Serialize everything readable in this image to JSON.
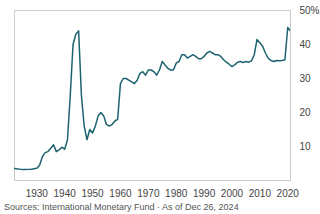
{
  "chart_data": {
    "type": "line",
    "caption": "Sources: International Monetary Fund · As of Dec 26, 2024",
    "color": "#1d6370",
    "x": [
      1922,
      1925,
      1928,
      1930,
      1931,
      1932,
      1933,
      1934,
      1935,
      1936,
      1937,
      1938,
      1939,
      1940,
      1941,
      1942,
      1943,
      1944,
      1945,
      1946,
      1947,
      1948,
      1949,
      1950,
      1951,
      1952,
      1953,
      1954,
      1955,
      1956,
      1957,
      1958,
      1959,
      1960,
      1961,
      1962,
      1963,
      1964,
      1965,
      1966,
      1967,
      1968,
      1969,
      1970,
      1971,
      1972,
      1973,
      1974,
      1975,
      1976,
      1977,
      1978,
      1979,
      1980,
      1981,
      1982,
      1983,
      1984,
      1985,
      1986,
      1987,
      1988,
      1989,
      1990,
      1991,
      1992,
      1993,
      1994,
      1995,
      1996,
      1997,
      1998,
      1999,
      2000,
      2001,
      2002,
      2003,
      2004,
      2005,
      2006,
      2007,
      2008,
      2009,
      2010,
      2011,
      2012,
      2013,
      2014,
      2015,
      2016,
      2017,
      2018,
      2019,
      2020,
      2021
    ],
    "values": [
      3.5,
      3.2,
      3.3,
      3.6,
      4.5,
      7,
      8.2,
      8.5,
      9.5,
      10.5,
      8.5,
      9,
      9.8,
      9.2,
      12,
      25,
      40,
      43,
      44,
      25,
      16,
      12,
      15,
      14,
      16,
      19,
      20,
      19,
      16.5,
      16,
      16.5,
      17.5,
      18,
      28.5,
      30,
      30,
      29.5,
      29,
      28.5,
      29.5,
      31.5,
      32,
      31,
      32.5,
      32.5,
      32,
      31,
      32.5,
      35,
      34,
      33,
      32.5,
      32.5,
      34.5,
      35,
      37,
      37,
      36,
      36.5,
      37,
      36.5,
      35.8,
      35.8,
      36.5,
      37.5,
      38,
      37.5,
      37,
      37,
      36.5,
      35.5,
      34.8,
      34.2,
      33.5,
      34,
      34.8,
      35,
      34.7,
      35,
      34.8,
      35.2,
      37,
      41.5,
      40.5,
      39.5,
      37.5,
      36,
      35.3,
      35,
      35.3,
      35.2,
      35.3,
      35.5,
      45,
      44
    ],
    "xlim": [
      1922,
      2021
    ],
    "xticks": [
      1930,
      1940,
      1950,
      1960,
      1970,
      1980,
      1990,
      2000,
      2010,
      2020
    ],
    "ylim": [
      0,
      50
    ],
    "yticks": [
      10,
      20,
      30,
      40,
      {
        "value": 50,
        "label": "50%"
      }
    ],
    "grid": false
  }
}
